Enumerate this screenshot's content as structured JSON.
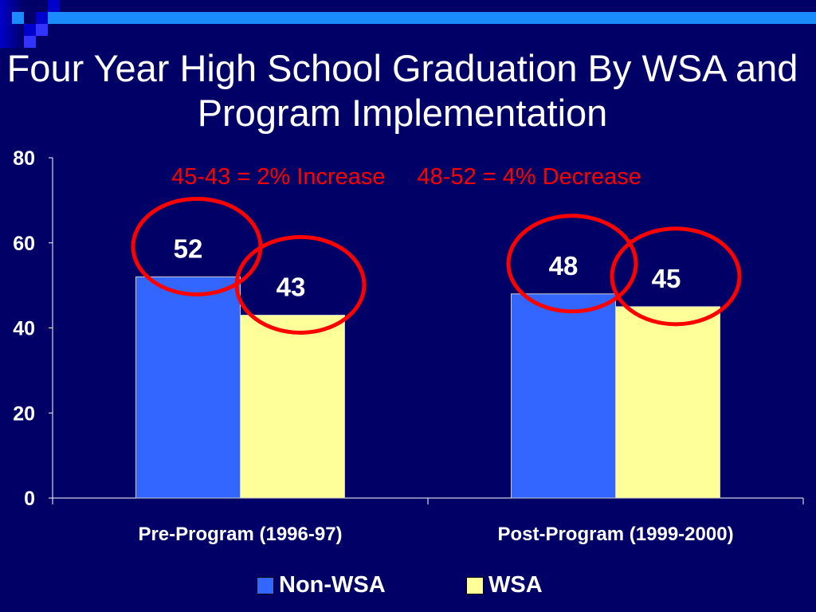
{
  "chart_data": {
    "type": "bar",
    "title": "Four Year High School Graduation By WSA and Program Implementation",
    "categories": [
      "Pre-Program (1996-97)",
      "Post-Program (1999-2000)"
    ],
    "series": [
      {
        "name": "Non-WSA",
        "values": [
          52,
          48
        ],
        "color": "#3366ff"
      },
      {
        "name": "WSA",
        "values": [
          43,
          45
        ],
        "color": "#ffff99"
      }
    ],
    "ylim": [
      0,
      80
    ],
    "yticks": [
      0,
      20,
      40,
      60,
      80
    ],
    "legend": "bottom",
    "grid": false,
    "annotations": [
      "45-43 = 2% Increase",
      "48-52 = 4% Decrease"
    ],
    "highlight_color": "#ff0000"
  }
}
